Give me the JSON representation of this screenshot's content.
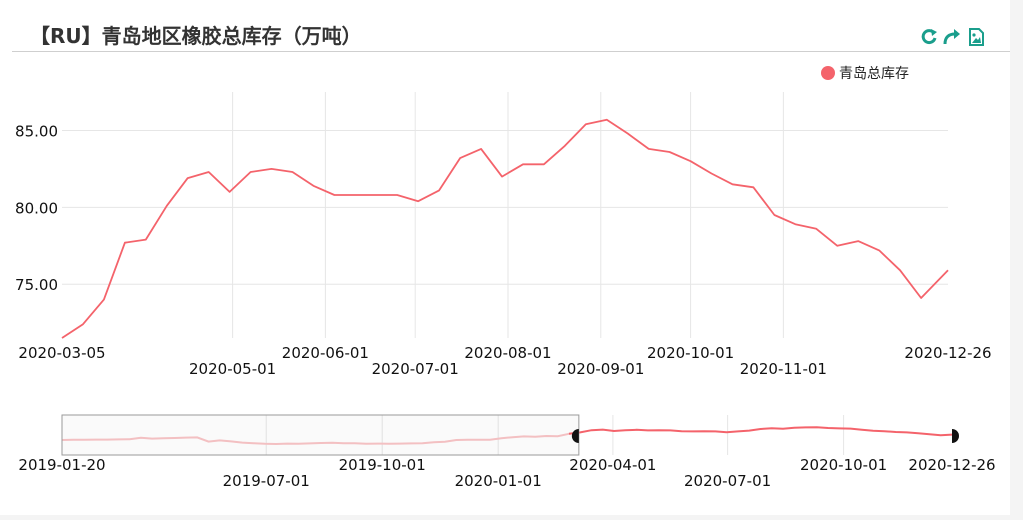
{
  "title": "【RU】青岛地区橡胶总库存（万吨）",
  "toolbar": {
    "refresh_icon": "refresh-icon",
    "share_icon": "share-icon",
    "save_image_icon": "save-image-icon"
  },
  "colors": {
    "series": "#f4636b",
    "grid": "#e6e6e6",
    "brush": "#f4636b"
  },
  "chart_data": {
    "type": "line",
    "title": "",
    "legend": {
      "position": "top-right",
      "entries": [
        "青岛总库存"
      ]
    },
    "ylim": [
      71.5,
      87.5
    ],
    "yticks": [
      "75.00",
      "80.00",
      "85.00"
    ],
    "xticks_top": [
      "2020-03-05",
      "2020-06-01",
      "2020-08-01",
      "2020-10-01",
      "2020-12-26"
    ],
    "xticks_bottom": [
      "2020-05-01",
      "2020-07-01",
      "2020-09-01",
      "2020-11-01"
    ],
    "series": [
      {
        "name": "青岛总库存",
        "x": [
          "2020-03-05",
          "2020-03-12",
          "2020-03-19",
          "2020-03-26",
          "2020-04-02",
          "2020-04-09",
          "2020-04-16",
          "2020-04-23",
          "2020-04-30",
          "2020-05-07",
          "2020-05-14",
          "2020-05-21",
          "2020-05-28",
          "2020-06-04",
          "2020-06-11",
          "2020-06-18",
          "2020-06-25",
          "2020-07-02",
          "2020-07-09",
          "2020-07-16",
          "2020-07-23",
          "2020-07-30",
          "2020-08-06",
          "2020-08-13",
          "2020-08-20",
          "2020-08-27",
          "2020-09-03",
          "2020-09-10",
          "2020-09-17",
          "2020-09-24",
          "2020-10-01",
          "2020-10-08",
          "2020-10-15",
          "2020-10-22",
          "2020-10-29",
          "2020-11-05",
          "2020-11-12",
          "2020-11-19",
          "2020-11-26",
          "2020-12-03",
          "2020-12-10",
          "2020-12-17",
          "2020-12-26"
        ],
        "values": [
          71.5,
          72.4,
          74.0,
          77.7,
          77.9,
          80.1,
          81.9,
          82.3,
          81.0,
          82.3,
          82.5,
          82.3,
          81.4,
          80.8,
          80.8,
          80.8,
          80.8,
          80.4,
          81.1,
          83.2,
          83.8,
          82.0,
          82.8,
          82.8,
          84.0,
          85.4,
          85.7,
          84.8,
          83.8,
          83.6,
          83.0,
          82.2,
          81.5,
          81.3,
          79.5,
          78.9,
          78.6,
          77.5,
          77.8,
          77.2,
          75.9,
          74.1,
          75.9
        ]
      }
    ],
    "navigator": {
      "xticks_top": [
        "2019-01-20",
        "2019-10-01",
        "2020-04-01",
        "2020-10-01",
        "2020-12-26"
      ],
      "xticks_bottom": [
        "2019-07-01",
        "2020-01-01",
        "2020-07-01"
      ],
      "selected_range": [
        "2020-03-05",
        "2020-12-26"
      ],
      "values": [
        76.5,
        76.6,
        76.6,
        76.7,
        76.7,
        76.8,
        76.9,
        77.6,
        77.2,
        77.4,
        77.5,
        77.7,
        77.8,
        75.7,
        76.3,
        75.8,
        75.2,
        74.9,
        74.6,
        74.5,
        74.7,
        74.6,
        74.8,
        75.0,
        75.1,
        74.9,
        74.9,
        74.6,
        74.7,
        74.6,
        74.7,
        74.8,
        74.9,
        75.4,
        75.6,
        76.5,
        76.6,
        76.6,
        76.6,
        77.4,
        77.9,
        78.3,
        78.1,
        78.5,
        78.4,
        79.6,
        80.3,
        81.4,
        81.7,
        81.0,
        81.4,
        81.6,
        81.3,
        81.4,
        81.3,
        80.9,
        80.8,
        80.9,
        80.8,
        80.4,
        80.8,
        81.2,
        82.0,
        82.4,
        82.1,
        82.6,
        82.8,
        82.9,
        82.5,
        82.3,
        82.2,
        81.6,
        81.1,
        80.9,
        80.5,
        80.3,
        79.9,
        79.4,
        78.9,
        79.2
      ]
    }
  }
}
